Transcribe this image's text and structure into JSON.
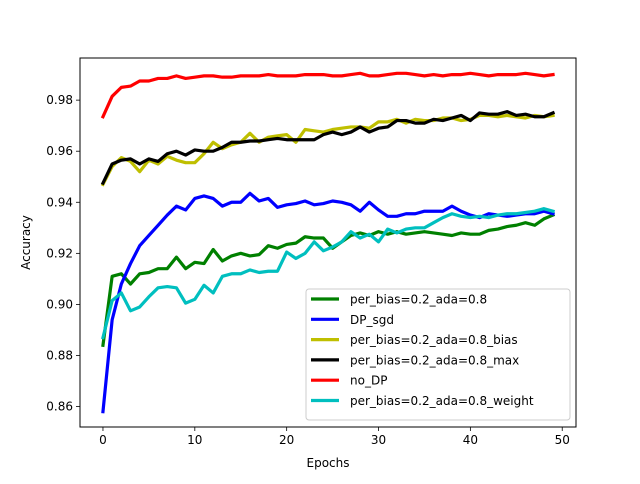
{
  "chart_data": {
    "type": "line",
    "title": "",
    "xlabel": "Epochs",
    "ylabel": "Accuracy",
    "xlim": [
      -2.5,
      51.5
    ],
    "ylim": [
      0.852,
      0.9965
    ],
    "xticks": [
      0,
      10,
      20,
      30,
      40,
      50
    ],
    "xtick_labels": [
      "0",
      "10",
      "20",
      "30",
      "40",
      "50"
    ],
    "yticks": [
      0.86,
      0.88,
      0.9,
      0.92,
      0.94,
      0.96,
      0.98
    ],
    "ytick_labels": [
      "0.86",
      "0.88",
      "0.90",
      "0.92",
      "0.94",
      "0.96",
      "0.98"
    ],
    "grid": false,
    "legend_position": "lower-right",
    "x": [
      0,
      1,
      2,
      3,
      4,
      5,
      6,
      7,
      8,
      9,
      10,
      11,
      12,
      13,
      14,
      15,
      16,
      17,
      18,
      19,
      20,
      21,
      22,
      23,
      24,
      25,
      26,
      27,
      28,
      29,
      30,
      31,
      32,
      33,
      34,
      35,
      36,
      37,
      38,
      39,
      40,
      41,
      42,
      43,
      44,
      45,
      46,
      47,
      48,
      49
    ],
    "series": [
      {
        "name": "per_bias=0.2_ada=0.8",
        "color": "#008000",
        "values": [
          0.884,
          0.911,
          0.912,
          0.908,
          0.912,
          0.9125,
          0.914,
          0.914,
          0.9185,
          0.914,
          0.9165,
          0.916,
          0.9215,
          0.917,
          0.919,
          0.92,
          0.919,
          0.9195,
          0.923,
          0.922,
          0.9235,
          0.924,
          0.9265,
          0.926,
          0.926,
          0.922,
          0.9245,
          0.927,
          0.928,
          0.927,
          0.9285,
          0.9275,
          0.9285,
          0.9275,
          0.928,
          0.9285,
          0.928,
          0.9275,
          0.927,
          0.928,
          0.9275,
          0.9275,
          0.929,
          0.9295,
          0.9305,
          0.931,
          0.932,
          0.931,
          0.9335,
          0.935
        ]
      },
      {
        "name": "DP_sgd",
        "color": "#0000ff",
        "values": [
          0.858,
          0.894,
          0.908,
          0.916,
          0.923,
          0.927,
          0.931,
          0.935,
          0.9385,
          0.937,
          0.9415,
          0.9425,
          0.9415,
          0.9385,
          0.94,
          0.94,
          0.9435,
          0.9405,
          0.9415,
          0.938,
          0.939,
          0.9395,
          0.9405,
          0.939,
          0.9395,
          0.9405,
          0.94,
          0.939,
          0.9365,
          0.94,
          0.937,
          0.9345,
          0.9345,
          0.9355,
          0.9355,
          0.9365,
          0.9365,
          0.9365,
          0.9385,
          0.9365,
          0.935,
          0.934,
          0.9355,
          0.935,
          0.9345,
          0.935,
          0.9355,
          0.9355,
          0.9365,
          0.9355
        ]
      },
      {
        "name": "per_bias=0.2_ada=0.8_bias",
        "color": "#bfbf00",
        "values": [
          0.947,
          0.954,
          0.9575,
          0.956,
          0.952,
          0.9565,
          0.955,
          0.958,
          0.9565,
          0.9555,
          0.9555,
          0.959,
          0.9635,
          0.961,
          0.9625,
          0.9635,
          0.967,
          0.9635,
          0.9655,
          0.966,
          0.9665,
          0.9635,
          0.9685,
          0.968,
          0.9675,
          0.9685,
          0.969,
          0.9695,
          0.9695,
          0.969,
          0.9715,
          0.9715,
          0.9725,
          0.971,
          0.9725,
          0.972,
          0.972,
          0.973,
          0.973,
          0.972,
          0.9725,
          0.974,
          0.974,
          0.9735,
          0.974,
          0.9735,
          0.973,
          0.974,
          0.9735,
          0.974
        ]
      },
      {
        "name": "per_bias=0.2_ada=0.8_max",
        "color": "#000000",
        "values": [
          0.9475,
          0.955,
          0.9565,
          0.957,
          0.955,
          0.957,
          0.956,
          0.959,
          0.96,
          0.9585,
          0.9605,
          0.96,
          0.96,
          0.9615,
          0.9635,
          0.9635,
          0.964,
          0.964,
          0.9645,
          0.965,
          0.9645,
          0.9645,
          0.9645,
          0.9645,
          0.9665,
          0.9675,
          0.9665,
          0.9675,
          0.9695,
          0.9675,
          0.969,
          0.9695,
          0.972,
          0.972,
          0.971,
          0.971,
          0.9725,
          0.972,
          0.973,
          0.974,
          0.972,
          0.975,
          0.9745,
          0.9745,
          0.9755,
          0.974,
          0.9745,
          0.9735,
          0.9735,
          0.975
        ]
      },
      {
        "name": "no_DP",
        "color": "#ff0000",
        "values": [
          0.9735,
          0.9815,
          0.985,
          0.9855,
          0.9875,
          0.9875,
          0.9885,
          0.9885,
          0.9895,
          0.9885,
          0.989,
          0.9895,
          0.9895,
          0.989,
          0.989,
          0.9895,
          0.9895,
          0.9895,
          0.99,
          0.9895,
          0.9895,
          0.9895,
          0.99,
          0.99,
          0.99,
          0.9895,
          0.9895,
          0.99,
          0.9905,
          0.9895,
          0.9895,
          0.99,
          0.9905,
          0.9905,
          0.99,
          0.9895,
          0.99,
          0.9895,
          0.99,
          0.99,
          0.9905,
          0.99,
          0.9895,
          0.99,
          0.99,
          0.99,
          0.9905,
          0.99,
          0.9895,
          0.99
        ]
      },
      {
        "name": "per_bias=0.2_ada=0.8_weight",
        "color": "#00bfbf",
        "values": [
          0.887,
          0.9015,
          0.9045,
          0.8975,
          0.899,
          0.903,
          0.9065,
          0.907,
          0.9065,
          0.9005,
          0.902,
          0.9075,
          0.9045,
          0.911,
          0.912,
          0.912,
          0.9135,
          0.9125,
          0.913,
          0.913,
          0.9205,
          0.918,
          0.92,
          0.9245,
          0.921,
          0.9225,
          0.9245,
          0.9285,
          0.926,
          0.9275,
          0.9245,
          0.9295,
          0.928,
          0.9295,
          0.93,
          0.93,
          0.932,
          0.934,
          0.9355,
          0.9345,
          0.934,
          0.9345,
          0.934,
          0.935,
          0.9355,
          0.9355,
          0.936,
          0.9365,
          0.9375,
          0.9365
        ]
      }
    ]
  }
}
